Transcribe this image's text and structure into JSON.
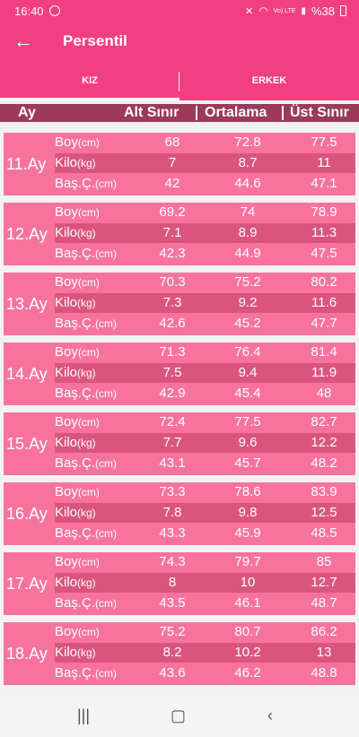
{
  "status": {
    "time": "16:40",
    "network": "Vo) LTE",
    "battery": "%38"
  },
  "appbar": {
    "back_icon": "arrow-left-icon",
    "title": "Persentil"
  },
  "tabs": [
    {
      "label": "KIZ",
      "active": true
    },
    {
      "label": "ERKEK",
      "active": false
    }
  ],
  "header": {
    "ay": "Ay",
    "alt": "Alt Sınır",
    "ortalama": "Ortalama",
    "ust": "Üst Sınır"
  },
  "labels": {
    "boy": "Boy",
    "boy_unit": "(cm)",
    "kilo": "Kilo",
    "kilo_unit": "(kg)",
    "bas": "Baş.Ç.",
    "bas_unit": "(cm)"
  },
  "months": [
    {
      "ay": "11.Ay",
      "boy": [
        "68",
        "72.8",
        "77.5"
      ],
      "kilo": [
        "7",
        "8.7",
        "11"
      ],
      "bas": [
        "42",
        "44.6",
        "47.1"
      ]
    },
    {
      "ay": "12.Ay",
      "boy": [
        "69.2",
        "74",
        "78.9"
      ],
      "kilo": [
        "7.1",
        "8.9",
        "11.3"
      ],
      "bas": [
        "42.3",
        "44.9",
        "47.5"
      ]
    },
    {
      "ay": "13.Ay",
      "boy": [
        "70.3",
        "75.2",
        "80.2"
      ],
      "kilo": [
        "7.3",
        "9.2",
        "11.6"
      ],
      "bas": [
        "42.6",
        "45.2",
        "47.7"
      ]
    },
    {
      "ay": "14.Ay",
      "boy": [
        "71.3",
        "76.4",
        "81.4"
      ],
      "kilo": [
        "7.5",
        "9.4",
        "11.9"
      ],
      "bas": [
        "42.9",
        "45.4",
        "48"
      ]
    },
    {
      "ay": "15.Ay",
      "boy": [
        "72.4",
        "77.5",
        "82.7"
      ],
      "kilo": [
        "7.7",
        "9.6",
        "12.2"
      ],
      "bas": [
        "43.1",
        "45.7",
        "48.2"
      ]
    },
    {
      "ay": "16.Ay",
      "boy": [
        "73.3",
        "78.6",
        "83.9"
      ],
      "kilo": [
        "7.8",
        "9.8",
        "12.5"
      ],
      "bas": [
        "43.3",
        "45.9",
        "48.5"
      ]
    },
    {
      "ay": "17.Ay",
      "boy": [
        "74.3",
        "79.7",
        "85"
      ],
      "kilo": [
        "8",
        "10",
        "12.7"
      ],
      "bas": [
        "43.5",
        "46.1",
        "48.7"
      ]
    },
    {
      "ay": "18.Ay",
      "boy": [
        "75.2",
        "80.7",
        "86.2"
      ],
      "kilo": [
        "8.2",
        "10.2",
        "13"
      ],
      "bas": [
        "43.6",
        "46.2",
        "48.8"
      ]
    }
  ],
  "navbar": {
    "recent_icon": "recent-apps-icon",
    "home_icon": "home-icon",
    "back_icon": "nav-back-icon"
  },
  "colors": {
    "primary": "#f23f81",
    "card": "#f7739e",
    "card_alt_row": "#d9557f",
    "header": "#9b3a5a"
  }
}
